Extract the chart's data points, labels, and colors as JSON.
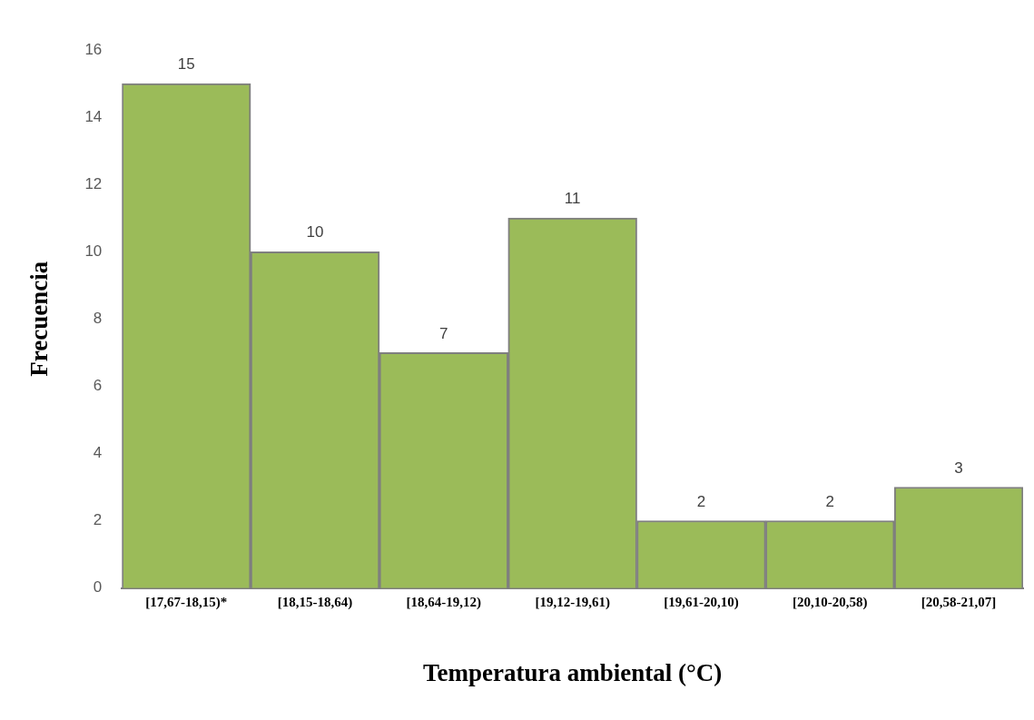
{
  "chart_data": {
    "type": "bar",
    "xlabel": "Temperatura ambiental (°C)",
    "ylabel": "Frecuencia",
    "categories": [
      "[17,67-18,15)*",
      "[18,15-18,64)",
      "[18,64-19,12)",
      "[19,12-19,61)",
      "[19,61-20,10)",
      "[20,10-20,58)",
      "[20,58-21,07]"
    ],
    "values": [
      15,
      10,
      7,
      11,
      2,
      2,
      3
    ],
    "color": "#9bbb59",
    "ylim": [
      0,
      16
    ],
    "yticks": [
      0,
      2,
      4,
      6,
      8,
      10,
      12,
      14,
      16
    ],
    "grid": false,
    "legend": false,
    "data_labels": true
  }
}
